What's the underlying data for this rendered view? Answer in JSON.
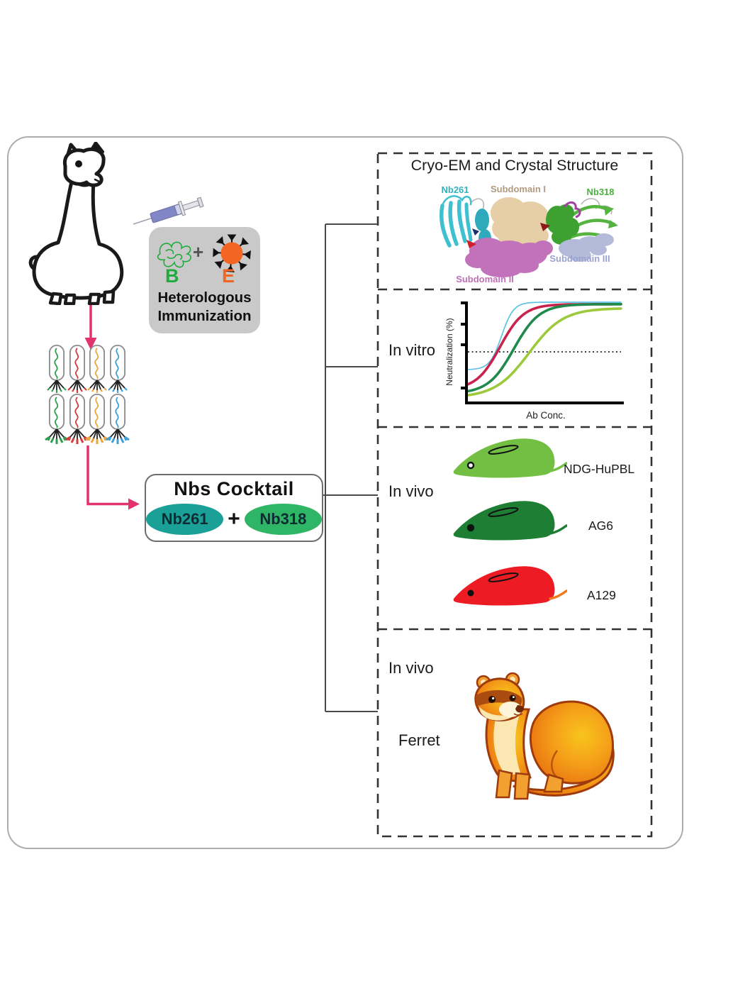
{
  "colors": {
    "pink_arrow": "#e33270",
    "bracket": "#4a4a4a",
    "panel_border": "#333333",
    "outer_border": "#adadad",
    "immunization_box_bg": "#c9c9c9",
    "antigen_b": "#1faa3c",
    "antigen_e": "#f26522",
    "virus": "#f26522",
    "syringe_barrel": "#8187c6",
    "phage": [
      "#2e9e4f",
      "#d63b3b",
      "#eaa63c",
      "#3f9fd8"
    ],
    "phage_capsule": "#8a8a8a"
  },
  "immunization": {
    "antigen_b_label": "B",
    "antigen_e_label": "E",
    "plus": "+",
    "caption_line1": "Heterologous",
    "caption_line2": "Immunization"
  },
  "cocktail": {
    "title": "Nbs Cocktail",
    "plus": "+",
    "items": [
      {
        "label": "Nb261",
        "color": "#1ba098"
      },
      {
        "label": "Nb318",
        "color": "#2fb566"
      }
    ]
  },
  "panel": {
    "cryoem": {
      "title": "Cryo-EM and Crystal Structure",
      "labels": [
        {
          "text": "Nb261",
          "color": "#35b0bf"
        },
        {
          "text": "Subdomain I",
          "color": "#b09a80"
        },
        {
          "text": "Nb318",
          "color": "#4caf3f"
        },
        {
          "text": "Subdomain III",
          "color": "#9aa3cf"
        },
        {
          "text": "Subdomain II",
          "color": "#c070b8"
        }
      ]
    },
    "invitro": {
      "label": "In vitro"
    },
    "invivo_mice": {
      "label": "In vivo",
      "mice": [
        {
          "label": "NDG-HuPBL",
          "color": "#72bf44",
          "tail_color": "#72bf44"
        },
        {
          "label": "AG6",
          "color": "#1e7e34",
          "tail_color": "#1e7e34"
        },
        {
          "label": "A129",
          "color": "#ed1c24",
          "tail_color": "#f0791c"
        }
      ]
    },
    "invivo_ferret": {
      "label": "In vivo",
      "animal": "Ferret"
    }
  },
  "chart_data": {
    "type": "line",
    "title": "",
    "xlabel": "Ab Conc.",
    "ylabel": "Neutralization (%)",
    "xlim_norm": [
      0,
      1
    ],
    "ylim": [
      0,
      100
    ],
    "grid": false,
    "legend": null,
    "reference_line": {
      "style": "dotted",
      "y": 50
    },
    "series": [
      {
        "name": "sigmoid-cyan",
        "color": "#5ec3e2",
        "width": 1.7,
        "ec50_x": 0.22,
        "steepness": 26,
        "y_start": 32,
        "y_plateau": 100
      },
      {
        "name": "sigmoid-crimson",
        "color": "#c9234d",
        "width": 3.6,
        "ec50_x": 0.21,
        "steepness": 13,
        "y_start": 12,
        "y_plateau": 98
      },
      {
        "name": "sigmoid-green",
        "color": "#1f8a4c",
        "width": 3.6,
        "ec50_x": 0.3,
        "steepness": 12,
        "y_start": 8,
        "y_plateau": 98
      },
      {
        "name": "sigmoid-yellowgreen",
        "color": "#9dc93c",
        "width": 3.6,
        "ec50_x": 0.4,
        "steepness": 9,
        "y_start": 4,
        "y_plateau": 94
      }
    ]
  }
}
